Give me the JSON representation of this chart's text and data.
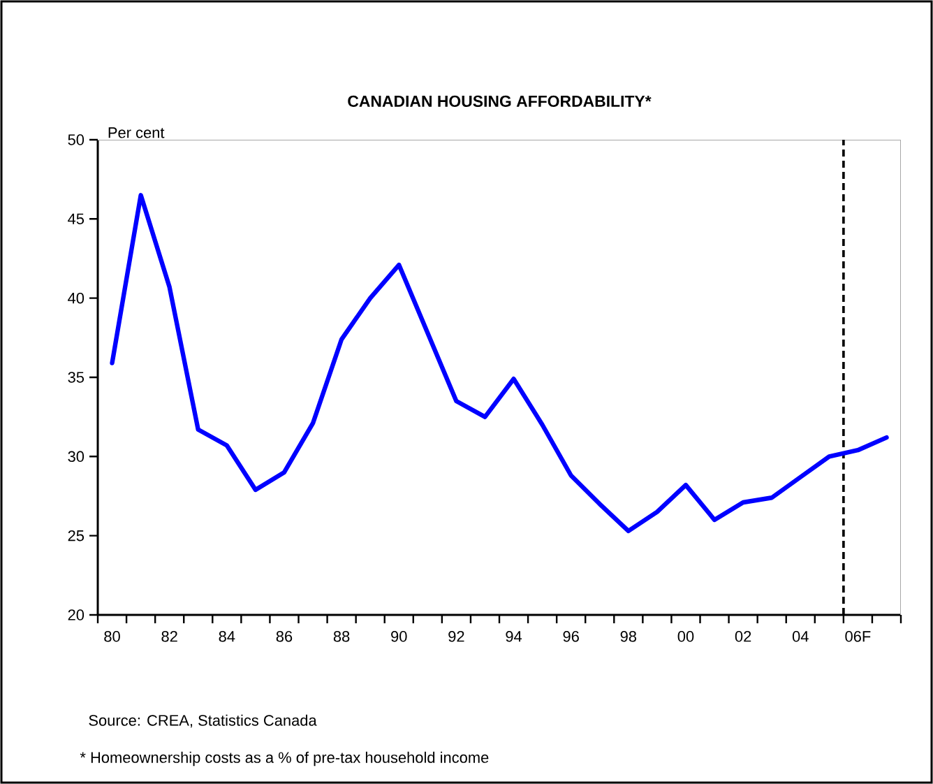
{
  "chart_data": {
    "type": "line",
    "title": "CANADIAN HOUSING AFFORDABILITY*",
    "ylabel": "Per cent",
    "categories": [
      "80",
      null,
      "82",
      null,
      "84",
      null,
      "86",
      null,
      "88",
      null,
      "90",
      null,
      "92",
      null,
      "94",
      null,
      "96",
      null,
      "98",
      null,
      "00",
      null,
      "02",
      null,
      "04",
      null,
      "06F",
      null
    ],
    "values": [
      35.9,
      46.5,
      40.7,
      31.7,
      30.7,
      27.9,
      29.0,
      32.1,
      37.4,
      40.0,
      42.1,
      37.8,
      33.5,
      32.5,
      34.9,
      32.0,
      28.8,
      27.0,
      25.3,
      26.5,
      28.2,
      26.0,
      27.1,
      27.4,
      28.7,
      30.0,
      30.4,
      31.2
    ],
    "color": "#0000ff",
    "ylim": [
      20,
      50
    ],
    "yticks": [
      20,
      25,
      30,
      35,
      40,
      45,
      50
    ],
    "annotations": [
      "Source: CREA, Statistics Canada",
      "* Homeownership costs as a % of pre-tax household income"
    ]
  }
}
